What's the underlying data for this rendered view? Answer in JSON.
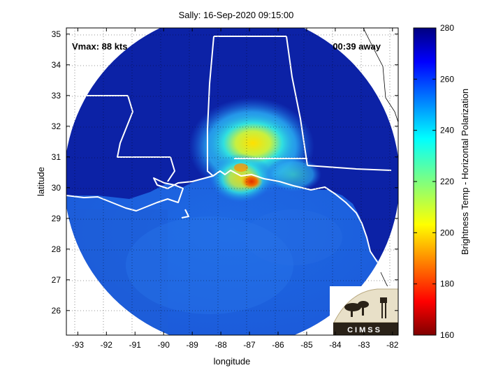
{
  "title": "Sally: 16-Sep-2020 09:15:00",
  "annotations": {
    "vmax": "Vmax: 88 kts",
    "time_away": "00:39 away"
  },
  "axes": {
    "xlabel": "longitude",
    "ylabel": "latitude",
    "xlim": [
      -93.4,
      -81.8
    ],
    "ylim": [
      25.2,
      35.2
    ],
    "xticks": [
      -93,
      -92,
      -91,
      -90,
      -89,
      -88,
      -87,
      -86,
      -85,
      -84,
      -83,
      -82
    ],
    "yticks": [
      26,
      27,
      28,
      29,
      30,
      31,
      32,
      33,
      34,
      35
    ],
    "grid": "dotted"
  },
  "colorbar": {
    "label": "Brightness Temp - Horizontal Polarization",
    "range": [
      160,
      280
    ],
    "ticks": [
      280,
      260,
      240,
      220,
      200,
      180,
      160
    ],
    "colormap": "jet"
  },
  "logo": {
    "text": "CIMSS"
  },
  "colors": {
    "warm_background": "#0d24a8",
    "ocean": "#1b63df",
    "storm_cold_core": "#e03000",
    "state_borders": "#ffffff",
    "coast_outside": "#000000"
  }
}
